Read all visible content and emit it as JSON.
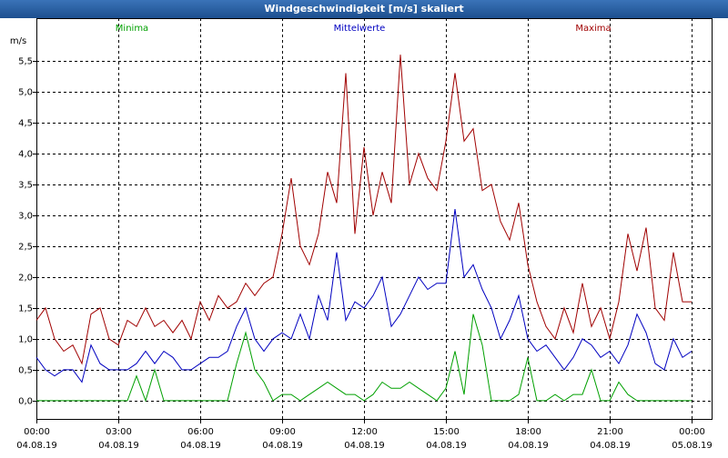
{
  "chart_data": {
    "type": "line",
    "title": "Windgeschwindigkeit [m/s] skaliert",
    "y_label": "m/s",
    "x": [
      0,
      20,
      40,
      60,
      80,
      100,
      120,
      140,
      160,
      180,
      200,
      220,
      240,
      260,
      280,
      300,
      320,
      340,
      360,
      380,
      400,
      420,
      440,
      460,
      480,
      500,
      520,
      540,
      560,
      580,
      600,
      620,
      640,
      660,
      680,
      700,
      720,
      740,
      760,
      780,
      800,
      820,
      840,
      860,
      880,
      900,
      920,
      940,
      960,
      980,
      1000,
      1020,
      1040,
      1060,
      1080,
      1100,
      1120,
      1140,
      1160,
      1180,
      1200,
      1220,
      1240,
      1260,
      1280,
      1300,
      1320,
      1340,
      1360,
      1380,
      1400,
      1420,
      1440
    ],
    "series": [
      {
        "name": "Minima",
        "color": "#00a000",
        "values": [
          0,
          0,
          0,
          0,
          0,
          0,
          0,
          0,
          0,
          0,
          0,
          0.4,
          0,
          0.5,
          0,
          0,
          0,
          0,
          0,
          0,
          0,
          0,
          0.6,
          1.1,
          0.5,
          0.3,
          0,
          0.1,
          0.1,
          0,
          0.1,
          0.2,
          0.3,
          0.2,
          0.1,
          0.1,
          0,
          0.1,
          0.3,
          0.2,
          0.2,
          0.3,
          0.2,
          0.1,
          0,
          0.2,
          0.8,
          0.1,
          1.4,
          0.9,
          0,
          0,
          0,
          0.1,
          0.7,
          0,
          0,
          0.1,
          0,
          0.1,
          0.1,
          0.5,
          0,
          0,
          0.3,
          0.1,
          0,
          0,
          0,
          0,
          0,
          0,
          0
        ]
      },
      {
        "name": "Mittelwerte",
        "color": "#0000c0",
        "values": [
          0.7,
          0.5,
          0.4,
          0.5,
          0.5,
          0.3,
          0.9,
          0.6,
          0.5,
          0.5,
          0.5,
          0.6,
          0.8,
          0.6,
          0.8,
          0.7,
          0.5,
          0.5,
          0.6,
          0.7,
          0.7,
          0.8,
          1.2,
          1.5,
          1.0,
          0.8,
          1.0,
          1.1,
          1.0,
          1.4,
          1.0,
          1.7,
          1.3,
          2.4,
          1.3,
          1.6,
          1.5,
          1.7,
          2.0,
          1.2,
          1.4,
          1.7,
          2.0,
          1.8,
          1.9,
          1.9,
          3.1,
          2.0,
          2.2,
          1.8,
          1.5,
          1.0,
          1.3,
          1.7,
          1.0,
          0.8,
          0.9,
          0.7,
          0.5,
          0.7,
          1.0,
          0.9,
          0.7,
          0.8,
          0.6,
          0.9,
          1.4,
          1.1,
          0.6,
          0.5,
          1.0,
          0.7,
          0.8
        ]
      },
      {
        "name": "Maxima",
        "color": "#a00000",
        "values": [
          1.3,
          1.5,
          1.0,
          0.8,
          0.9,
          0.6,
          1.4,
          1.5,
          1.0,
          0.9,
          1.3,
          1.2,
          1.5,
          1.2,
          1.3,
          1.1,
          1.3,
          1.0,
          1.6,
          1.3,
          1.7,
          1.5,
          1.6,
          1.9,
          1.7,
          1.9,
          2.0,
          2.7,
          3.6,
          2.5,
          2.2,
          2.7,
          3.7,
          3.2,
          5.3,
          2.7,
          4.1,
          3.0,
          3.7,
          3.2,
          5.6,
          3.5,
          4.0,
          3.6,
          3.4,
          4.2,
          5.3,
          4.2,
          4.4,
          3.4,
          3.5,
          2.9,
          2.6,
          3.2,
          2.2,
          1.6,
          1.2,
          1.0,
          1.5,
          1.1,
          1.9,
          1.2,
          1.5,
          1.0,
          1.6,
          2.7,
          2.1,
          2.8,
          1.5,
          1.3,
          2.4,
          1.6,
          1.6
        ]
      }
    ],
    "xlim": [
      0,
      1486
    ],
    "ylim": [
      -0.31,
      6.19
    ],
    "xticks": [
      {
        "value": 0,
        "label": "00:00",
        "date": "04.08.19"
      },
      {
        "value": 180,
        "label": "03:00",
        "date": "04.08.19"
      },
      {
        "value": 360,
        "label": "06:00",
        "date": "04.08.19"
      },
      {
        "value": 540,
        "label": "09:00",
        "date": "04.08.19"
      },
      {
        "value": 720,
        "label": "12:00",
        "date": "04.08.19"
      },
      {
        "value": 900,
        "label": "15:00",
        "date": "04.08.19"
      },
      {
        "value": 1080,
        "label": "18:00",
        "date": "04.08.19"
      },
      {
        "value": 1260,
        "label": "21:00",
        "date": "04.08.19"
      },
      {
        "value": 1440,
        "label": "00:00",
        "date": "05.08.19"
      }
    ],
    "yticks": [
      {
        "value": 0,
        "label": "0,0"
      },
      {
        "value": 0.5,
        "label": "0,5"
      },
      {
        "value": 1,
        "label": "1,0"
      },
      {
        "value": 1.5,
        "label": "1,5"
      },
      {
        "value": 2,
        "label": "2,0"
      },
      {
        "value": 2.5,
        "label": "2,5"
      },
      {
        "value": 3,
        "label": "3,0"
      },
      {
        "value": 3.5,
        "label": "3,5"
      },
      {
        "value": 4,
        "label": "4,0"
      },
      {
        "value": 4.5,
        "label": "4,5"
      },
      {
        "value": 5,
        "label": "5,0"
      },
      {
        "value": 5.5,
        "label": "5,5"
      }
    ],
    "grid": true
  }
}
